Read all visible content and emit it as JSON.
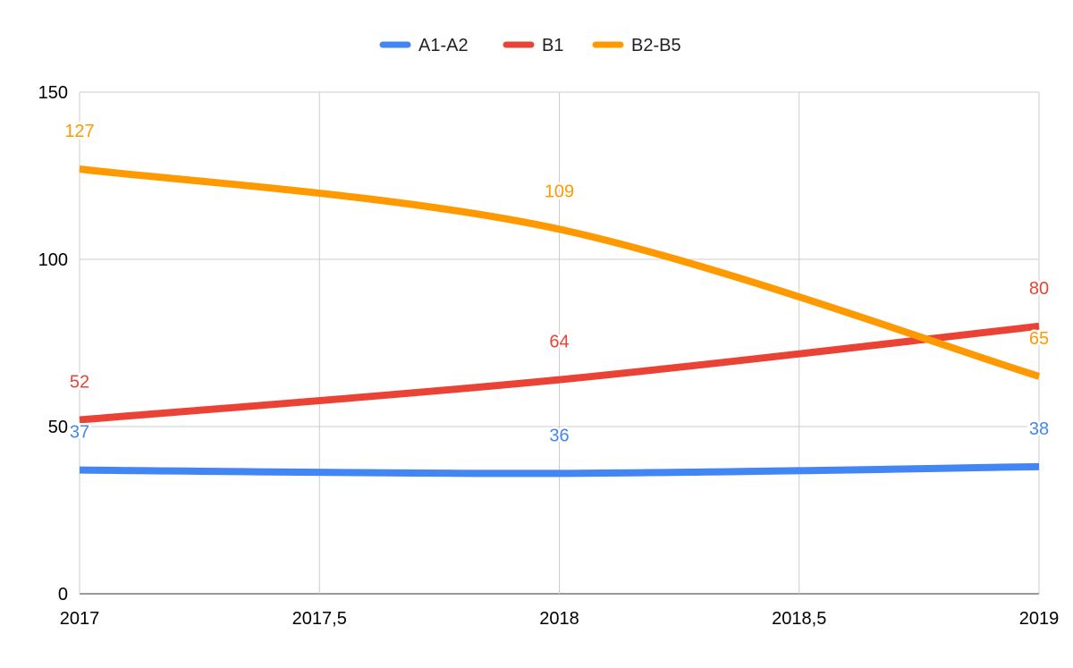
{
  "chart_data": {
    "type": "line",
    "title": "",
    "xlabel": "",
    "ylabel": "",
    "x": [
      2017,
      2018,
      2019
    ],
    "xlim": [
      2017,
      2019
    ],
    "ylim": [
      0,
      150
    ],
    "x_ticks": [
      "2017",
      "2017,5",
      "2018",
      "2018,5",
      "2019"
    ],
    "y_ticks": [
      "0",
      "50",
      "100",
      "150"
    ],
    "grid": true,
    "smooth": true,
    "legend_position": "top",
    "data_labels": true,
    "series": [
      {
        "name": "A1-A2",
        "color": "#4285F4",
        "values": [
          37,
          36,
          38
        ]
      },
      {
        "name": "B1",
        "color": "#EA4335",
        "values": [
          52,
          64,
          80
        ]
      },
      {
        "name": "B2-B5",
        "color": "#FF9900",
        "values": [
          127,
          109,
          65
        ]
      }
    ]
  }
}
